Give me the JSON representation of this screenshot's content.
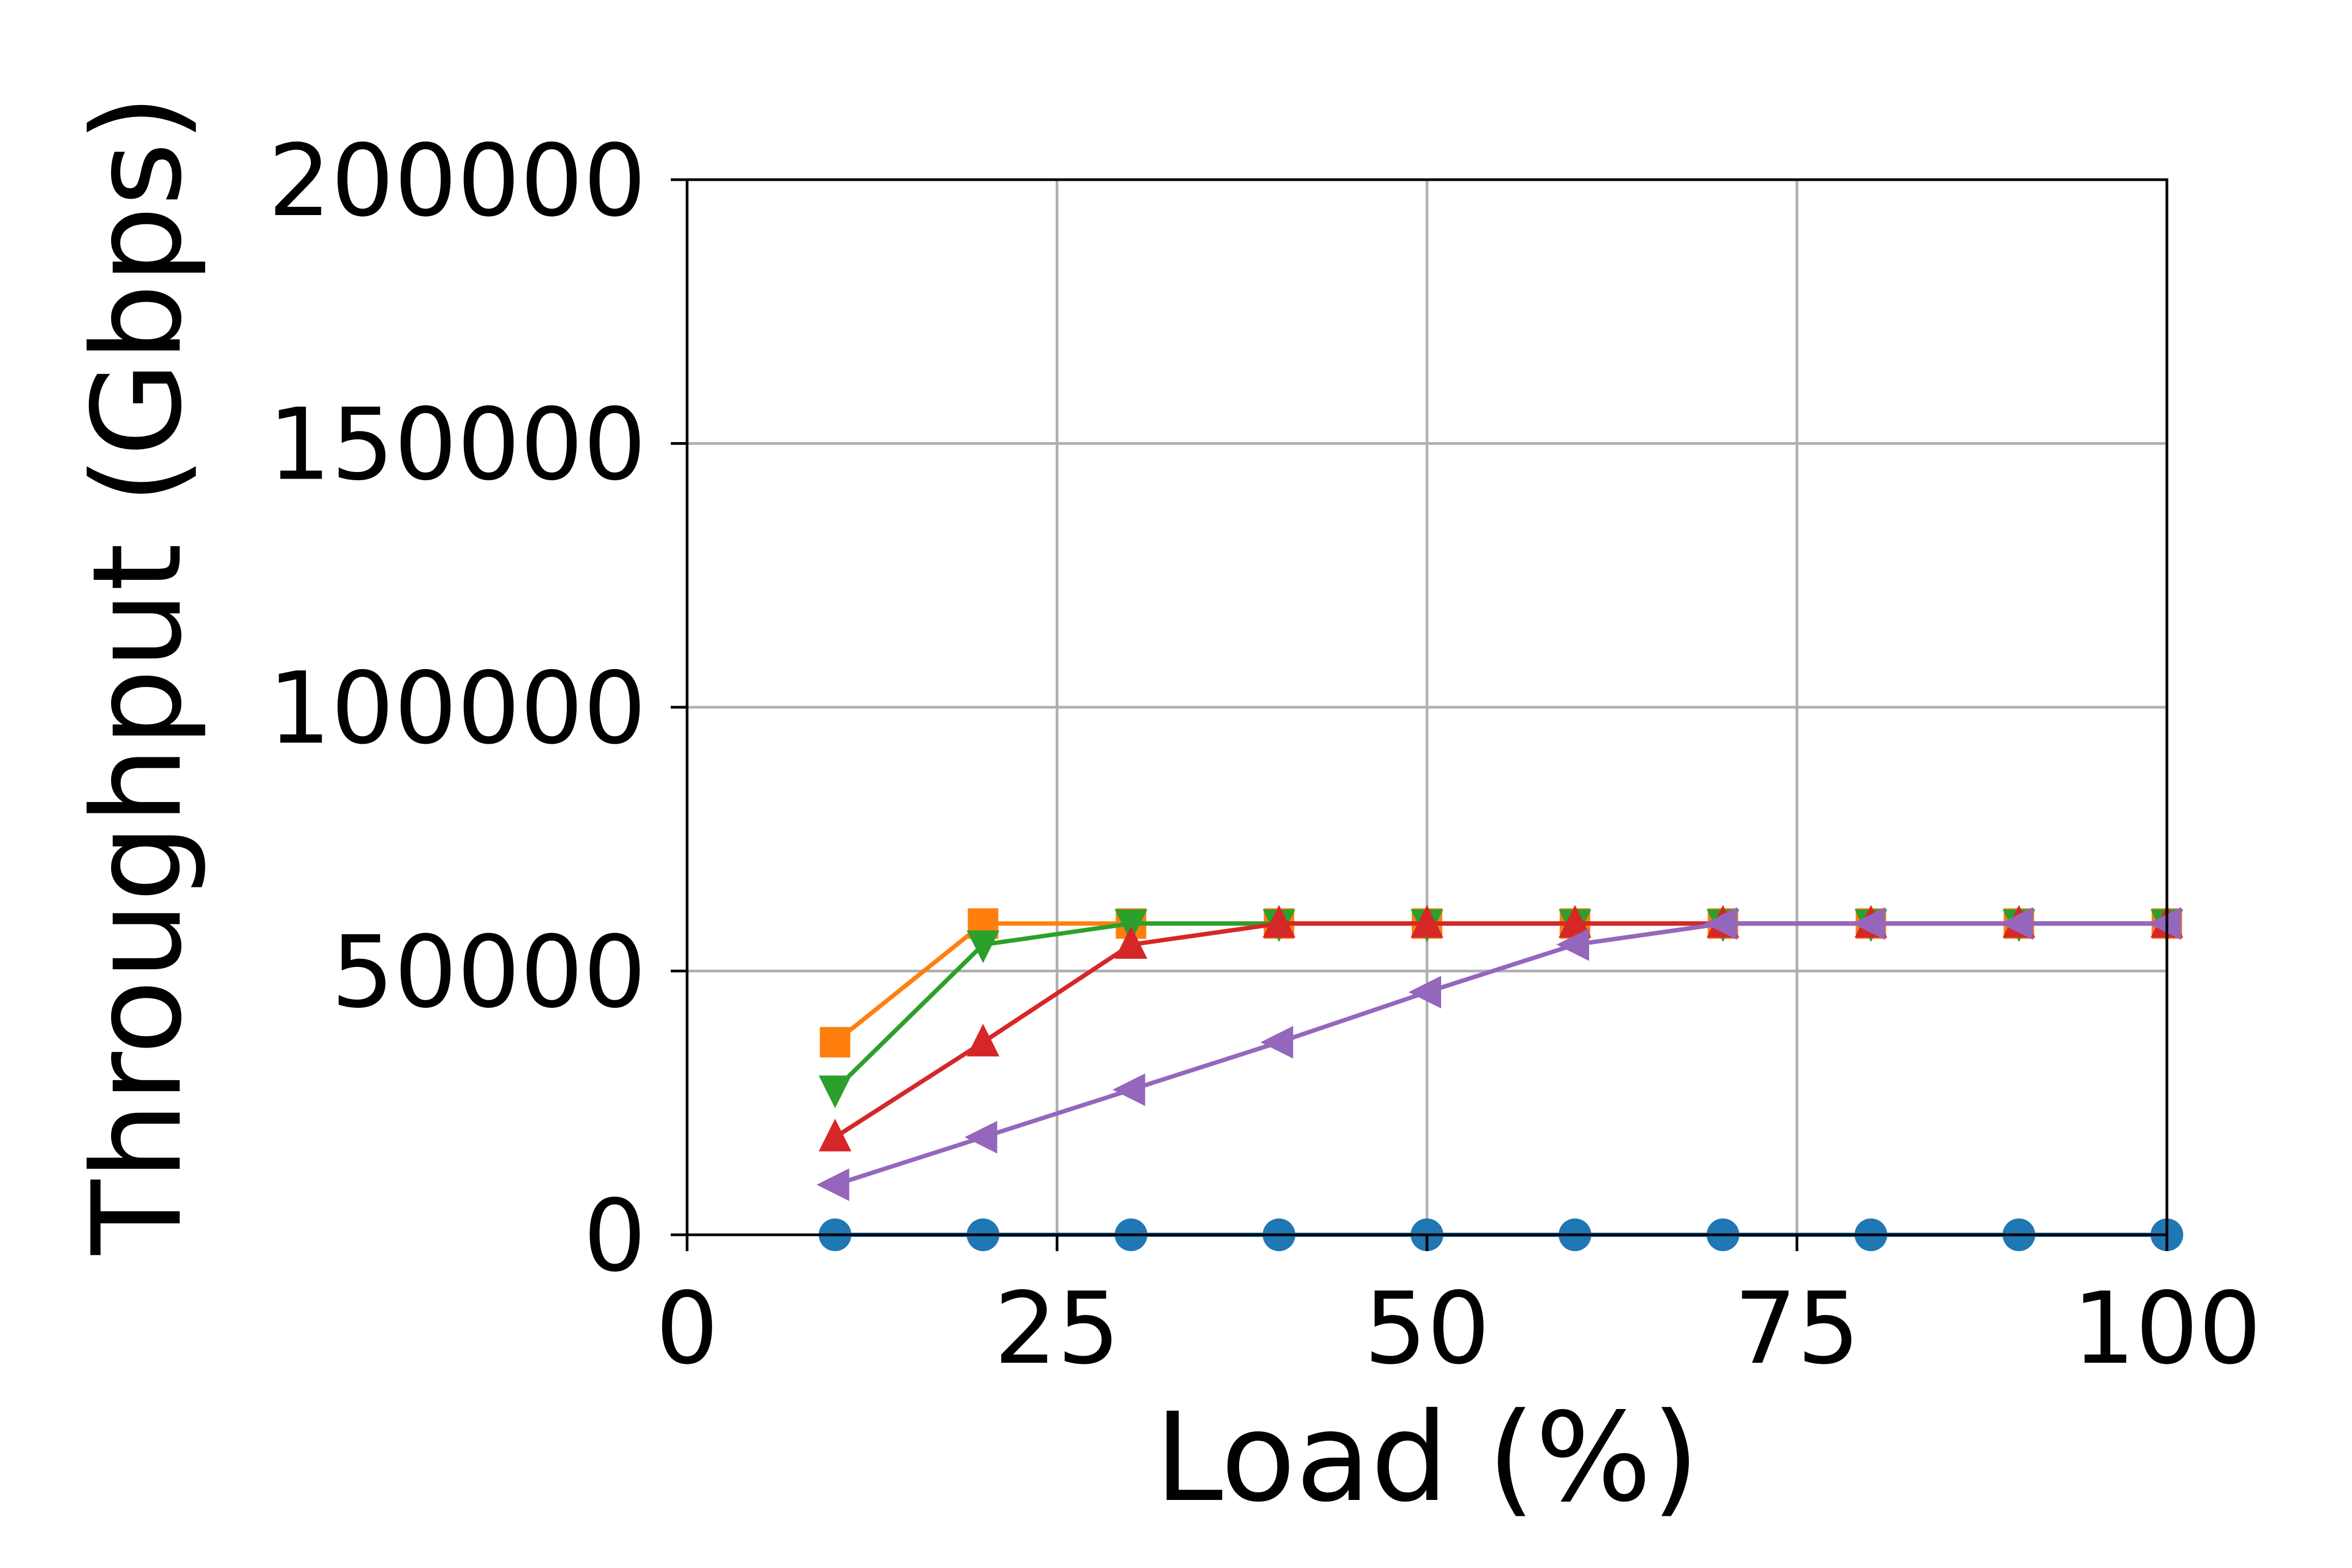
{
  "chart_data": {
    "type": "line",
    "title": "",
    "xlabel": "Load (%)",
    "ylabel": "Throughput (Gbps)",
    "xlim": [
      0,
      100
    ],
    "ylim": [
      0,
      200000
    ],
    "xticks": [
      0,
      25,
      50,
      75,
      100
    ],
    "yticks": [
      0,
      50000,
      100000,
      150000,
      200000
    ],
    "grid": true,
    "legend": "none",
    "x": [
      10,
      20,
      30,
      40,
      50,
      60,
      70,
      80,
      90,
      100
    ],
    "series": [
      {
        "color": "#1f77b4",
        "marker": "circle",
        "values": [
          0,
          0,
          0,
          0,
          0,
          0,
          0,
          0,
          0,
          0
        ]
      },
      {
        "color": "#ff7f0e",
        "marker": "square",
        "values": [
          36500,
          59000,
          59000,
          59000,
          59000,
          59000,
          59000,
          59000,
          59000,
          59000
        ]
      },
      {
        "color": "#2ca02c",
        "marker": "triangle-down",
        "values": [
          27500,
          55000,
          59000,
          59000,
          59000,
          59000,
          59000,
          59000,
          59000,
          59000
        ]
      },
      {
        "color": "#d62728",
        "marker": "triangle-up",
        "values": [
          18500,
          36500,
          55000,
          59000,
          59000,
          59000,
          59000,
          59000,
          59000,
          59000
        ]
      },
      {
        "color": "#9467bd",
        "marker": "triangle-left",
        "values": [
          9500,
          18500,
          27500,
          36500,
          46000,
          55000,
          59000,
          59000,
          59000,
          59000
        ]
      }
    ]
  }
}
